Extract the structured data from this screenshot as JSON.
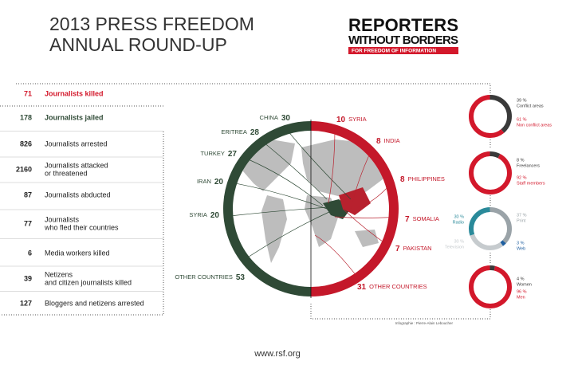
{
  "header": {
    "title_line1": "2013 PRESS FREEDOM",
    "title_line2": "ANNUAL ROUND-UP"
  },
  "logo": {
    "line1": "REPORTERS",
    "line2": "WITHOUT BORDERS",
    "tagline": "FOR FREEDOM OF INFORMATION"
  },
  "stats": [
    {
      "number": "71",
      "label_lines": [
        "Journalists killed"
      ]
    },
    {
      "number": "178",
      "label_lines": [
        "Journalists jailed"
      ]
    },
    {
      "number": "826",
      "label_lines": [
        "Journalists arrested"
      ]
    },
    {
      "number": "2160",
      "label_lines": [
        "Journalists attacked",
        "or threatened"
      ]
    },
    {
      "number": "87",
      "label_lines": [
        "Journalists abducted"
      ]
    },
    {
      "number": "77",
      "label_lines": [
        "Journalists",
        "who fled their countries"
      ]
    },
    {
      "number": "6",
      "label_lines": [
        "Media workers killed"
      ]
    },
    {
      "number": "39",
      "label_lines": [
        "Netizens",
        "and citizen journalists killed"
      ]
    },
    {
      "number": "127",
      "label_lines": [
        "Bloggers and netizens arrested"
      ]
    }
  ],
  "jailed_by_country": [
    {
      "country": "CHINA",
      "count": "30"
    },
    {
      "country": "ERITREA",
      "count": "28"
    },
    {
      "country": "TURKEY",
      "count": "27"
    },
    {
      "country": "IRAN",
      "count": "20"
    },
    {
      "country": "SYRIA",
      "count": "20"
    },
    {
      "country": "OTHER COUNTRIES",
      "count": "53"
    }
  ],
  "killed_by_country": [
    {
      "country": "SYRIA",
      "count": "10"
    },
    {
      "country": "INDIA",
      "count": "8"
    },
    {
      "country": "PHILIPPINES",
      "count": "8"
    },
    {
      "country": "SOMALIA",
      "count": "7"
    },
    {
      "country": "PAKISTAN",
      "count": "7"
    },
    {
      "country": "OTHER COUNTRIES",
      "count": "31"
    }
  ],
  "donuts": [
    {
      "segments": [
        {
          "value": 39,
          "value_label": "39 %",
          "label": "Conflict areas",
          "color": "#3a3a3a"
        },
        {
          "value": 61,
          "value_label": "61 %",
          "label": "Non conflict areas",
          "color": "#d3182b"
        }
      ]
    },
    {
      "segments": [
        {
          "value": 8,
          "value_label": "8 %",
          "label": "Freelancers",
          "color": "#3a3a3a"
        },
        {
          "value": 92,
          "value_label": "92 %",
          "label": "Staff members",
          "color": "#d3182b"
        }
      ]
    },
    {
      "segments": [
        {
          "value": 37,
          "value_label": "37 %",
          "label": "Print",
          "color": "#9aa3a8"
        },
        {
          "value": 3,
          "value_label": "3 %",
          "label": "Web",
          "color": "#1f5fa0"
        },
        {
          "value": 30,
          "value_label": "30 %",
          "label": "Television",
          "color": "#c6cbce"
        },
        {
          "value": 30,
          "value_label": "30 %",
          "label": "Radio",
          "color": "#2a8a9a"
        }
      ]
    },
    {
      "segments": [
        {
          "value": 4,
          "value_label": "4 %",
          "label": "Women",
          "color": "#3a3a3a"
        },
        {
          "value": 96,
          "value_label": "96 %",
          "label": "Men",
          "color": "#d3182b"
        }
      ]
    }
  ],
  "credit": "Infographie : Pierre-Alain Leboucher",
  "url": "www.rsf.org"
}
